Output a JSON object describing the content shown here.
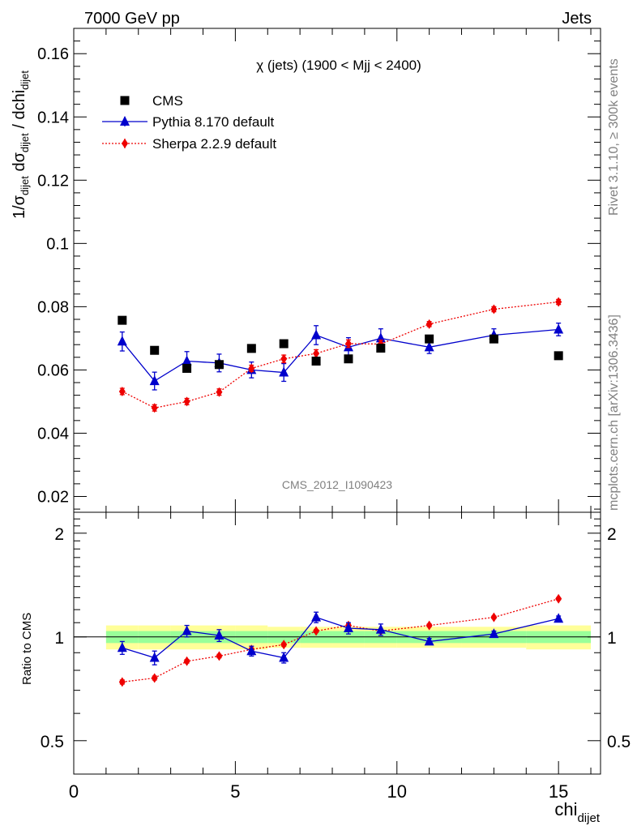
{
  "header": {
    "left": "7000 GeV pp",
    "right": "Jets"
  },
  "side_texts": {
    "rivet": "Rivet 3.1.10, ≥ 300k events",
    "mcplots": "mcplots.cern.ch [arXiv:1306.3436]"
  },
  "analysis_label": "CMS_2012_I1090423",
  "chart_data": [
    {
      "type": "scatter",
      "title": "χ (jets) (1900 < Mjj < 2400)",
      "xlabel": "chi_dijet",
      "ylabel": "1/σ_dijet dσ_dijet / dchi_dijet",
      "xlim": [
        0,
        16.3
      ],
      "ylim": [
        0.015,
        0.168
      ],
      "y_ticks": [
        0.02,
        0.04,
        0.06,
        0.08,
        0.1,
        0.12,
        0.14,
        0.16
      ],
      "y_tick_labels": [
        "0.02",
        "0.04",
        "0.06",
        "0.08",
        "0.1",
        "0.12",
        "0.14",
        "0.16"
      ],
      "legend_position": "top-left",
      "x": [
        1.5,
        2.5,
        3.5,
        4.5,
        5.5,
        6.5,
        7.5,
        8.5,
        9.5,
        11,
        13,
        15
      ],
      "series": [
        {
          "name": "CMS",
          "color": "#000000",
          "marker": "square",
          "values": [
            0.0757,
            0.0662,
            0.0605,
            0.0617,
            0.0668,
            0.0683,
            0.0628,
            0.0635,
            0.0669,
            0.0698,
            0.0698,
            0.0645
          ]
        },
        {
          "name": "Pythia 8.170 default",
          "color": "#0000cc",
          "marker": "triangle",
          "line": "solid",
          "values": [
            0.069,
            0.0565,
            0.0628,
            0.0622,
            0.06,
            0.0592,
            0.071,
            0.0672,
            0.07,
            0.0672,
            0.071,
            0.0728
          ],
          "errors": [
            0.003,
            0.0028,
            0.003,
            0.0028,
            0.0025,
            0.0028,
            0.003,
            0.003,
            0.003,
            0.002,
            0.002,
            0.002
          ]
        },
        {
          "name": "Sherpa 2.2.9 default",
          "color": "#ee0000",
          "marker": "diamond",
          "line": "dotted",
          "values": [
            0.0532,
            0.048,
            0.05,
            0.053,
            0.0605,
            0.0635,
            0.0652,
            0.0683,
            0.0682,
            0.0745,
            0.0792,
            0.0815
          ],
          "errors": [
            0.001,
            0.001,
            0.001,
            0.001,
            0.001,
            0.0012,
            0.0012,
            0.0012,
            0.0012,
            0.0008,
            0.0008,
            0.0008
          ]
        }
      ]
    },
    {
      "type": "scatter",
      "xlabel": "chi_dijet",
      "ylabel": "Ratio to CMS",
      "xlim": [
        0,
        16.3
      ],
      "ylim": [
        0.4,
        2.3
      ],
      "y_ticks": [
        0.5,
        1,
        2
      ],
      "y_tick_labels": [
        "0.5",
        "1",
        "2"
      ],
      "x_ticks": [
        0,
        5,
        10,
        15
      ],
      "x_tick_labels": [
        "0",
        "5",
        "10",
        "15"
      ],
      "bands": {
        "x_edges": [
          1,
          2,
          3,
          4,
          5,
          6,
          7,
          8,
          9,
          10,
          12,
          14,
          16
        ],
        "inner": [
          0.04,
          0.04,
          0.04,
          0.04,
          0.04,
          0.04,
          0.04,
          0.04,
          0.04,
          0.04,
          0.04,
          0.04
        ],
        "outer": [
          0.08,
          0.08,
          0.08,
          0.08,
          0.08,
          0.07,
          0.07,
          0.07,
          0.07,
          0.07,
          0.07,
          0.08
        ],
        "inner_color": "#99ff99",
        "outer_color": "#ffff99"
      },
      "x": [
        1.5,
        2.5,
        3.5,
        4.5,
        5.5,
        6.5,
        7.5,
        8.5,
        9.5,
        11,
        13,
        15
      ],
      "series": [
        {
          "name": "Pythia 8.170 default",
          "color": "#0000cc",
          "marker": "triangle",
          "line": "solid",
          "values": [
            0.93,
            0.87,
            1.04,
            1.01,
            0.91,
            0.87,
            1.14,
            1.06,
            1.05,
            0.97,
            1.02,
            1.13
          ],
          "errors": [
            0.04,
            0.04,
            0.04,
            0.04,
            0.03,
            0.03,
            0.04,
            0.04,
            0.04,
            0.02,
            0.02,
            0.02
          ]
        },
        {
          "name": "Sherpa 2.2.9 default",
          "color": "#ee0000",
          "marker": "diamond",
          "line": "dotted",
          "values": [
            0.74,
            0.76,
            0.85,
            0.88,
            0.92,
            0.95,
            1.04,
            1.08,
            1.04,
            1.08,
            1.14,
            1.29
          ],
          "errors": [
            0.01,
            0.01,
            0.01,
            0.01,
            0.01,
            0.01,
            0.01,
            0.01,
            0.01,
            0.01,
            0.01,
            0.01
          ]
        }
      ]
    }
  ]
}
